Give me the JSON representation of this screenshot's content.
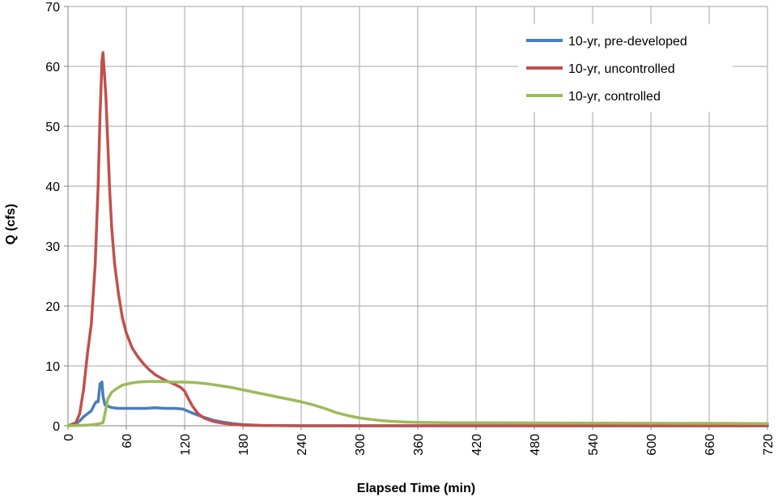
{
  "chart_data": {
    "type": "line",
    "title": "",
    "xlabel": "Elapsed Time (min)",
    "ylabel": "Q (cfs)",
    "xlim": [
      0,
      720
    ],
    "ylim": [
      0,
      70
    ],
    "xticks": [
      0,
      60,
      120,
      180,
      240,
      300,
      360,
      420,
      480,
      540,
      600,
      660,
      720
    ],
    "yticks": [
      0,
      10,
      20,
      30,
      40,
      50,
      60,
      70
    ],
    "grid": true,
    "legend_position": "top-right",
    "series": [
      {
        "name": "10-yr, pre-developed",
        "color": "#4a7ebb",
        "points": [
          [
            0,
            0
          ],
          [
            8,
            0.3
          ],
          [
            12,
            0.8
          ],
          [
            16,
            1.5
          ],
          [
            20,
            2
          ],
          [
            24,
            2.5
          ],
          [
            27,
            3.5
          ],
          [
            29,
            4
          ],
          [
            31,
            4
          ],
          [
            33,
            7
          ],
          [
            35,
            7.3
          ],
          [
            36,
            5
          ],
          [
            38,
            3.5
          ],
          [
            42,
            3.2
          ],
          [
            46,
            3
          ],
          [
            52,
            2.9
          ],
          [
            60,
            2.9
          ],
          [
            70,
            2.9
          ],
          [
            80,
            2.9
          ],
          [
            90,
            3
          ],
          [
            100,
            2.9
          ],
          [
            110,
            2.9
          ],
          [
            118,
            2.8
          ],
          [
            124,
            2.4
          ],
          [
            130,
            2
          ],
          [
            140,
            1.4
          ],
          [
            150,
            0.9
          ],
          [
            160,
            0.6
          ],
          [
            170,
            0.35
          ],
          [
            180,
            0.2
          ],
          [
            200,
            0.05
          ],
          [
            240,
            0
          ],
          [
            360,
            0
          ],
          [
            480,
            0
          ],
          [
            600,
            0
          ],
          [
            720,
            0
          ]
        ]
      },
      {
        "name": "10-yr, uncontrolled",
        "color": "#c0504d",
        "points": [
          [
            0,
            0
          ],
          [
            8,
            0.5
          ],
          [
            12,
            2
          ],
          [
            16,
            6
          ],
          [
            20,
            12
          ],
          [
            24,
            17
          ],
          [
            28,
            27
          ],
          [
            31,
            40
          ],
          [
            33,
            52
          ],
          [
            35,
            61
          ],
          [
            36,
            62.3
          ],
          [
            37,
            60
          ],
          [
            39,
            55
          ],
          [
            41,
            47
          ],
          [
            43,
            39
          ],
          [
            45,
            33
          ],
          [
            48,
            27
          ],
          [
            52,
            22
          ],
          [
            56,
            18
          ],
          [
            60,
            15.5
          ],
          [
            66,
            13
          ],
          [
            72,
            11.5
          ],
          [
            78,
            10.3
          ],
          [
            84,
            9.3
          ],
          [
            90,
            8.5
          ],
          [
            100,
            7.6
          ],
          [
            110,
            6.9
          ],
          [
            116,
            6.4
          ],
          [
            120,
            5.8
          ],
          [
            124,
            4.5
          ],
          [
            128,
            3.3
          ],
          [
            134,
            2
          ],
          [
            140,
            1.3
          ],
          [
            150,
            0.7
          ],
          [
            160,
            0.4
          ],
          [
            170,
            0.25
          ],
          [
            180,
            0.1
          ],
          [
            200,
            0.05
          ],
          [
            240,
            0
          ],
          [
            360,
            0
          ],
          [
            480,
            0
          ],
          [
            600,
            0
          ],
          [
            720,
            0
          ]
        ]
      },
      {
        "name": "10-yr, controlled",
        "color": "#9bbb59",
        "points": [
          [
            0,
            0
          ],
          [
            20,
            0.1
          ],
          [
            30,
            0.3
          ],
          [
            36,
            0.5
          ],
          [
            38,
            2
          ],
          [
            41,
            4.5
          ],
          [
            45,
            5.6
          ],
          [
            50,
            6.2
          ],
          [
            56,
            6.8
          ],
          [
            64,
            7.1
          ],
          [
            72,
            7.3
          ],
          [
            84,
            7.4
          ],
          [
            96,
            7.4
          ],
          [
            108,
            7.3
          ],
          [
            120,
            7.3
          ],
          [
            132,
            7.2
          ],
          [
            144,
            7
          ],
          [
            156,
            6.7
          ],
          [
            168,
            6.4
          ],
          [
            180,
            6
          ],
          [
            192,
            5.6
          ],
          [
            204,
            5.2
          ],
          [
            216,
            4.8
          ],
          [
            228,
            4.4
          ],
          [
            240,
            4
          ],
          [
            252,
            3.5
          ],
          [
            264,
            2.9
          ],
          [
            276,
            2.2
          ],
          [
            288,
            1.7
          ],
          [
            300,
            1.3
          ],
          [
            312,
            1.05
          ],
          [
            324,
            0.85
          ],
          [
            336,
            0.7
          ],
          [
            348,
            0.62
          ],
          [
            360,
            0.57
          ],
          [
            390,
            0.52
          ],
          [
            420,
            0.5
          ],
          [
            480,
            0.47
          ],
          [
            540,
            0.44
          ],
          [
            600,
            0.42
          ],
          [
            660,
            0.4
          ],
          [
            720,
            0.38
          ]
        ]
      }
    ]
  }
}
